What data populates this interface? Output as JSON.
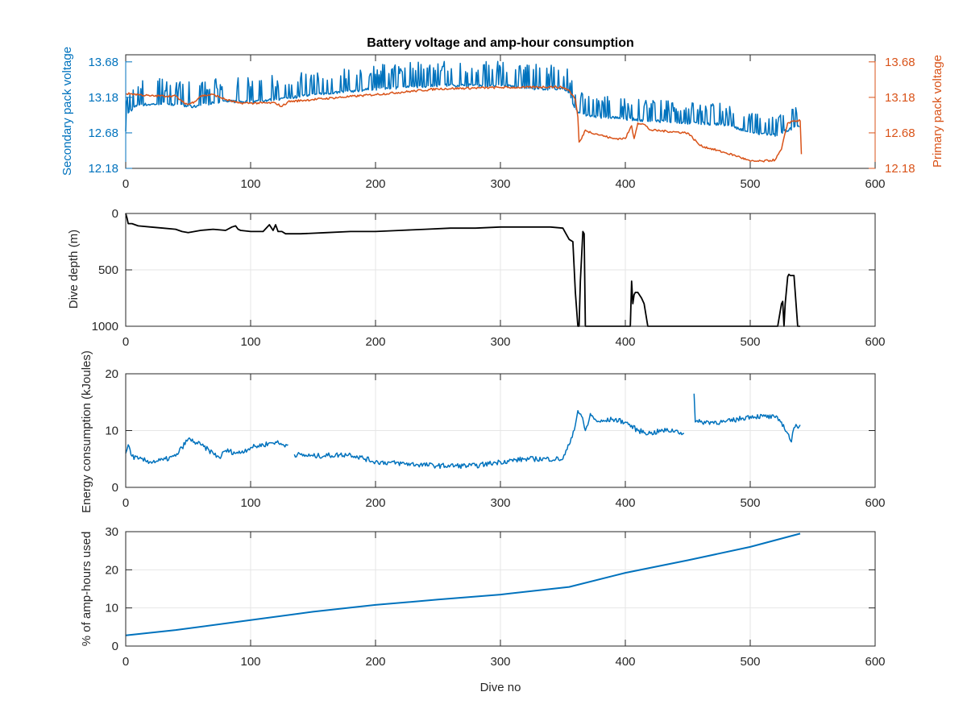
{
  "chart_data": [
    {
      "type": "line",
      "title": "Battery voltage and amp-hour consumption",
      "xlabel": "",
      "ylabel_left": "Secondary pack voltage",
      "ylabel_right": "Primary pack voltage",
      "xlim": [
        0,
        600
      ],
      "ylim": [
        12.18,
        13.78
      ],
      "xticks": [
        "0",
        "100",
        "200",
        "300",
        "400",
        "500",
        "600"
      ],
      "yticks_left": [
        "12.18",
        "12.68",
        "13.18",
        "13.68"
      ],
      "yticks_right": [
        "12.18",
        "12.68",
        "13.18",
        "13.68"
      ],
      "grid": false,
      "colors": {
        "left": "#0072BD",
        "right": "#D95319"
      },
      "series": [
        {
          "axis": "left",
          "color": "#0072BD",
          "x": [
            0,
            2,
            4,
            6,
            8,
            10,
            15,
            20,
            30,
            40,
            50,
            55,
            60,
            80,
            100,
            120,
            150,
            200,
            250,
            300,
            330,
            350,
            355,
            360,
            365,
            370,
            380,
            390,
            400,
            420,
            450,
            480,
            500,
            520,
            530,
            535,
            540
          ],
          "y": [
            12.72,
            12.95,
            13.0,
            13.02,
            13.05,
            13.08,
            13.08,
            13.08,
            13.1,
            13.08,
            13.05,
            13.05,
            13.08,
            13.12,
            13.12,
            13.15,
            13.22,
            13.3,
            13.35,
            13.35,
            13.3,
            13.3,
            13.25,
            13.0,
            12.95,
            12.92,
            12.9,
            12.9,
            12.88,
            12.85,
            12.82,
            12.8,
            12.68,
            12.65,
            12.72,
            12.75,
            12.78
          ],
          "spike_amplitude": 0.35,
          "spike_start": 0,
          "spike_end": 545
        },
        {
          "axis": "right",
          "color": "#D95319",
          "x": [
            0,
            5,
            10,
            20,
            40,
            45,
            50,
            55,
            60,
            70,
            80,
            90,
            100,
            120,
            125,
            130,
            150,
            200,
            250,
            300,
            320,
            340,
            350,
            355,
            360,
            362,
            363,
            365,
            368,
            370,
            380,
            390,
            400,
            405,
            407,
            410,
            415,
            420,
            450,
            460,
            480,
            490,
            500,
            510,
            520,
            525,
            530,
            535,
            540,
            541
          ],
          "y": [
            13.23,
            13.23,
            13.22,
            13.2,
            13.2,
            13.12,
            13.08,
            13.12,
            13.2,
            13.22,
            13.15,
            13.1,
            13.1,
            13.1,
            13.05,
            13.12,
            13.15,
            13.22,
            13.3,
            13.32,
            13.32,
            13.33,
            13.32,
            13.28,
            13.15,
            12.9,
            12.55,
            12.6,
            12.72,
            12.7,
            12.65,
            12.6,
            12.6,
            12.78,
            12.6,
            12.82,
            12.8,
            12.72,
            12.68,
            12.5,
            12.4,
            12.35,
            12.28,
            12.28,
            12.3,
            12.45,
            12.82,
            12.85,
            12.85,
            12.38
          ]
        }
      ]
    },
    {
      "type": "line",
      "title": "",
      "xlabel": "",
      "ylabel": "Dive depth (m)",
      "xlim": [
        0,
        600
      ],
      "ylim": [
        0,
        1000
      ],
      "y_reversed": true,
      "xticks": [
        "0",
        "100",
        "200",
        "300",
        "400",
        "500",
        "600"
      ],
      "yticks": [
        "0",
        "500",
        "1000"
      ],
      "grid": true,
      "series": [
        {
          "color": "#000000",
          "x": [
            0,
            1,
            2,
            5,
            10,
            20,
            30,
            40,
            45,
            50,
            55,
            60,
            70,
            80,
            85,
            88,
            90,
            92,
            100,
            110,
            115,
            118,
            120,
            122,
            125,
            128,
            130,
            140,
            160,
            180,
            200,
            220,
            240,
            260,
            280,
            300,
            320,
            340,
            350,
            352,
            355,
            358,
            360,
            362,
            363,
            364,
            366,
            367,
            368,
            370,
            380,
            400,
            404,
            405,
            406,
            407,
            408,
            410,
            413,
            415,
            418,
            420,
            450,
            500,
            522,
            525,
            526,
            527,
            528,
            530,
            531,
            532,
            533,
            535,
            538,
            540
          ],
          "y": [
            0,
            40,
            90,
            90,
            110,
            120,
            130,
            140,
            160,
            170,
            160,
            150,
            140,
            150,
            120,
            110,
            140,
            150,
            160,
            160,
            100,
            150,
            100,
            160,
            160,
            180,
            180,
            180,
            170,
            160,
            160,
            150,
            140,
            130,
            130,
            120,
            120,
            120,
            130,
            170,
            230,
            250,
            700,
            1000,
            1000,
            600,
            160,
            180,
            1000,
            1000,
            1000,
            1000,
            1000,
            600,
            800,
            720,
            700,
            700,
            750,
            800,
            1000,
            1000,
            1000,
            1000,
            1000,
            800,
            780,
            1000,
            800,
            560,
            540,
            550,
            550,
            550,
            1000,
            1000
          ]
        }
      ]
    },
    {
      "type": "line",
      "title": "",
      "xlabel": "",
      "ylabel": "Energy consumption (kJoules)",
      "xlim": [
        0,
        600
      ],
      "ylim": [
        0,
        20
      ],
      "xticks": [
        "0",
        "100",
        "200",
        "300",
        "400",
        "500",
        "600"
      ],
      "yticks": [
        "0",
        "10",
        "20"
      ],
      "grid": true,
      "series": [
        {
          "color": "#0072BD",
          "x": [
            0,
            2,
            5,
            10,
            20,
            30,
            40,
            45,
            50,
            55,
            60,
            70,
            75,
            80,
            90,
            100,
            110,
            120,
            125,
            130,
            null,
            135,
            150,
            180,
            200,
            250,
            280,
            300,
            320,
            350,
            355,
            360,
            362,
            365,
            368,
            370,
            372,
            375,
            380,
            390,
            400,
            410,
            420,
            430,
            440,
            447,
            null,
            455,
            456,
            460,
            480,
            500,
            510,
            520,
            525,
            530,
            533,
            535,
            540
          ],
          "y": [
            6,
            7.5,
            5.5,
            5,
            4.5,
            4.8,
            5.5,
            7,
            8.5,
            8,
            7.5,
            6,
            5.2,
            6.5,
            6,
            7,
            7.5,
            8,
            7.5,
            7.5,
            null,
            5.8,
            5.5,
            5.8,
            4.5,
            3.8,
            3.8,
            4.5,
            5,
            5,
            7.5,
            11,
            13.5,
            12.5,
            10,
            11,
            13,
            12,
            11.5,
            12,
            11.5,
            10,
            9.5,
            10,
            10,
            9.5,
            null,
            16.5,
            11.5,
            11.5,
            11.5,
            12.5,
            12.5,
            12.3,
            11.5,
            9.5,
            8,
            10.5,
            11
          ]
        }
      ]
    },
    {
      "type": "line",
      "title": "",
      "xlabel": "Dive no",
      "ylabel": "% of amp-hours used",
      "xlim": [
        0,
        600
      ],
      "ylim": [
        0,
        30
      ],
      "xticks": [
        "0",
        "100",
        "200",
        "300",
        "400",
        "500",
        "600"
      ],
      "yticks": [
        "0",
        "10",
        "20",
        "30"
      ],
      "grid": true,
      "series": [
        {
          "color": "#0072BD",
          "x": [
            0,
            40,
            100,
            150,
            200,
            250,
            300,
            355,
            400,
            450,
            500,
            540
          ],
          "y": [
            2.8,
            4.2,
            6.8,
            9,
            10.8,
            12.2,
            13.5,
            15.5,
            19.2,
            22.5,
            26,
            29.5
          ]
        }
      ]
    }
  ]
}
